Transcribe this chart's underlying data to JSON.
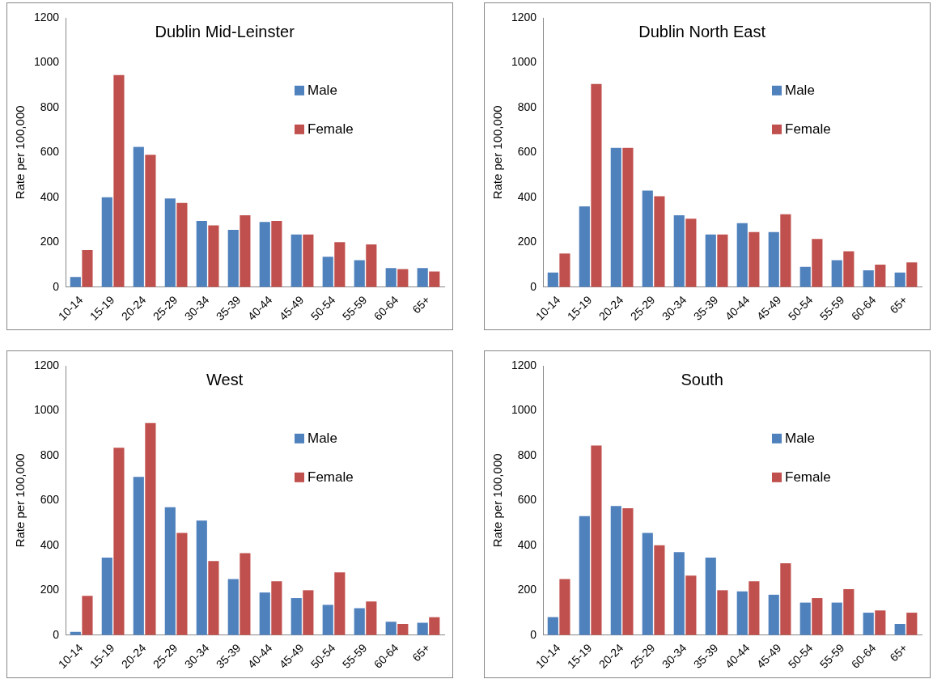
{
  "chart_data": [
    {
      "type": "bar",
      "title": "Dublin Mid-Leinster",
      "ylabel": "Rate per 100,000",
      "categories": [
        "10-14",
        "15-19",
        "20-24",
        "25-29",
        "30-34",
        "35-39",
        "40-44",
        "45-49",
        "50-54",
        "55-59",
        "60-64",
        "65+"
      ],
      "ylim": [
        0,
        1200
      ],
      "yticks": [
        0,
        200,
        400,
        600,
        800,
        1000,
        1200
      ],
      "grid": false,
      "legend": "right",
      "series": [
        {
          "name": "Male",
          "color": "#4f81bd",
          "values": [
            45,
            400,
            625,
            395,
            295,
            255,
            290,
            235,
            135,
            120,
            85,
            85
          ]
        },
        {
          "name": "Female",
          "color": "#c0504d",
          "values": [
            165,
            945,
            590,
            375,
            275,
            320,
            295,
            235,
            200,
            190,
            80,
            70
          ]
        }
      ]
    },
    {
      "type": "bar",
      "title": "Dublin North East",
      "ylabel": "Rate per 100,000",
      "categories": [
        "10-14",
        "15-19",
        "20-24",
        "25-29",
        "30-34",
        "35-39",
        "40-44",
        "45-49",
        "50-54",
        "55-59",
        "60-64",
        "65+"
      ],
      "ylim": [
        0,
        1200
      ],
      "yticks": [
        0,
        200,
        400,
        600,
        800,
        1000,
        1200
      ],
      "grid": false,
      "legend": "right",
      "series": [
        {
          "name": "Male",
          "color": "#4f81bd",
          "values": [
            65,
            360,
            620,
            430,
            320,
            235,
            285,
            245,
            90,
            120,
            75,
            65
          ]
        },
        {
          "name": "Female",
          "color": "#c0504d",
          "values": [
            150,
            905,
            620,
            405,
            305,
            235,
            245,
            325,
            215,
            160,
            100,
            110
          ]
        }
      ]
    },
    {
      "type": "bar",
      "title": "West",
      "ylabel": "Rate per 100,000",
      "categories": [
        "10-14",
        "15-19",
        "20-24",
        "25-29",
        "30-34",
        "35-39",
        "40-44",
        "45-49",
        "50-54",
        "55-59",
        "60-64",
        "65+"
      ],
      "ylim": [
        0,
        1200
      ],
      "yticks": [
        0,
        200,
        400,
        600,
        800,
        1000,
        1200
      ],
      "grid": false,
      "legend": "right",
      "series": [
        {
          "name": "Male",
          "color": "#4f81bd",
          "values": [
            15,
            345,
            705,
            570,
            510,
            250,
            190,
            165,
            135,
            120,
            60,
            55
          ]
        },
        {
          "name": "Female",
          "color": "#c0504d",
          "values": [
            175,
            835,
            945,
            455,
            330,
            365,
            240,
            200,
            280,
            150,
            50,
            80
          ]
        }
      ]
    },
    {
      "type": "bar",
      "title": "South",
      "ylabel": "Rate per 100,000",
      "categories": [
        "10-14",
        "15-19",
        "20-24",
        "25-29",
        "30-34",
        "35-39",
        "40-44",
        "45-49",
        "50-54",
        "55-59",
        "60-64",
        "65+"
      ],
      "ylim": [
        0,
        1200
      ],
      "yticks": [
        0,
        200,
        400,
        600,
        800,
        1000,
        1200
      ],
      "grid": false,
      "legend": "right",
      "series": [
        {
          "name": "Male",
          "color": "#4f81bd",
          "values": [
            80,
            530,
            575,
            455,
            370,
            345,
            195,
            180,
            145,
            145,
            100,
            50
          ]
        },
        {
          "name": "Female",
          "color": "#c0504d",
          "values": [
            250,
            845,
            565,
            400,
            265,
            200,
            240,
            320,
            165,
            205,
            110,
            100
          ]
        }
      ]
    }
  ]
}
